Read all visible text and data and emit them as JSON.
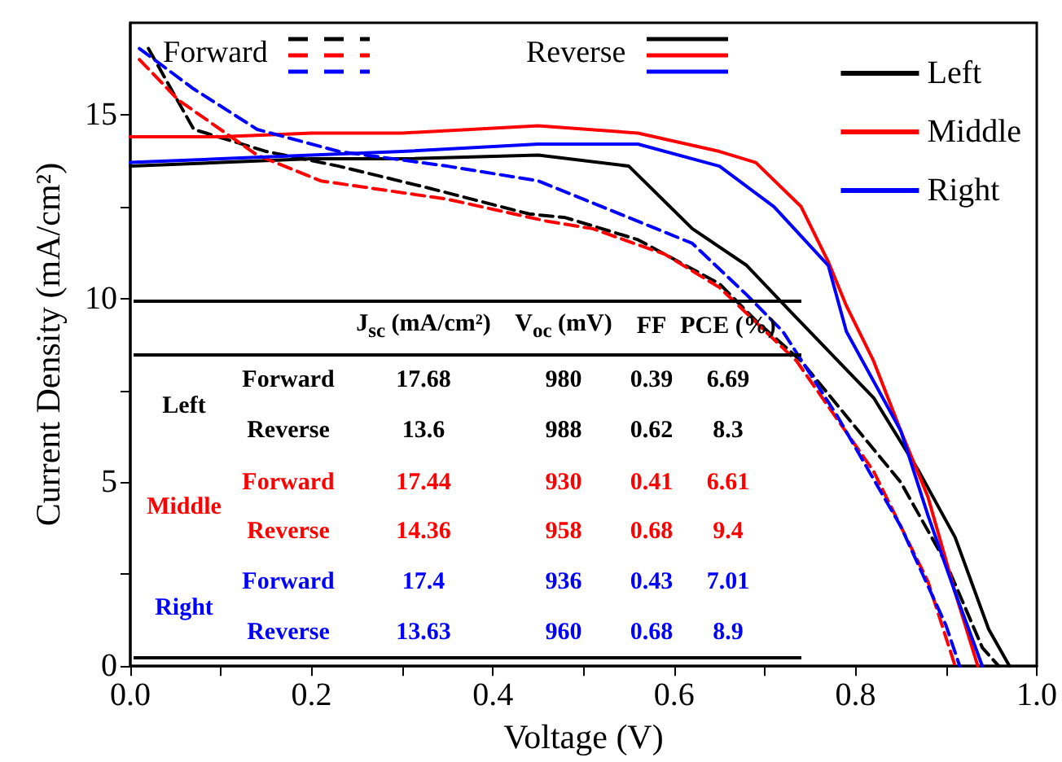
{
  "chart_data": {
    "type": "line",
    "xlabel": "Voltage (V)",
    "ylabel": "Current Density (mA/cm²)",
    "xlim": [
      0,
      1
    ],
    "ylim": [
      0,
      17.5
    ],
    "xticks": [
      {
        "value": 0,
        "label": "0.0"
      },
      {
        "value": 0.1,
        "label": null
      },
      0.2,
      {
        "value": 0.3,
        "label": null
      },
      0.4,
      {
        "value": 0.5,
        "label": null
      },
      0.6,
      {
        "value": 0.7,
        "label": null
      },
      0.8,
      {
        "value": 0.9,
        "label": null
      },
      {
        "value": 1,
        "label": "1.0"
      }
    ],
    "yticks": [
      0,
      {
        "value": 2.5,
        "label": null
      },
      5,
      {
        "value": 7.5,
        "label": null
      },
      10,
      {
        "value": 12.5,
        "label": null
      },
      15
    ],
    "grid": false,
    "legend": "top right",
    "marker": "none",
    "series": [
      {
        "color": "#000000",
        "line_style": "dashed",
        "x": [
          0.02,
          0.07,
          0.15,
          0.23,
          0.33,
          0.44,
          0.48,
          0.56,
          0.65,
          0.69,
          0.74,
          0.79,
          0.85,
          0.9,
          0.94,
          0.958
        ],
        "values": [
          16.8,
          14.6,
          14.0,
          13.6,
          13.0,
          12.3,
          12.2,
          11.6,
          10.4,
          9.4,
          8.3,
          6.8,
          5.0,
          2.8,
          0.5,
          0
        ]
      },
      {
        "name": "Left",
        "color": "#000000",
        "line_style": "solid",
        "x": [
          0,
          0.1,
          0.2,
          0.3,
          0.45,
          0.55,
          0.62,
          0.68,
          0.73,
          0.82,
          0.87,
          0.91,
          0.947,
          0.97
        ],
        "values": [
          13.6,
          13.7,
          13.8,
          13.8,
          13.9,
          13.6,
          11.9,
          10.9,
          9.6,
          7.3,
          5.3,
          3.5,
          1.0,
          0
        ]
      },
      {
        "color": "#ff0000",
        "line_style": "dashed",
        "x": [
          0.01,
          0.053,
          0.14,
          0.21,
          0.35,
          0.46,
          0.51,
          0.59,
          0.65,
          0.735,
          0.82,
          0.88,
          0.91
        ],
        "values": [
          16.5,
          15.4,
          13.9,
          13.2,
          12.7,
          12.1,
          11.9,
          11.2,
          10.3,
          8.3,
          5.3,
          2.3,
          0
        ]
      },
      {
        "name": "Middle",
        "color": "#ff0000",
        "line_style": "solid",
        "x": [
          0,
          0.1,
          0.2,
          0.3,
          0.45,
          0.56,
          0.65,
          0.69,
          0.74,
          0.77,
          0.79,
          0.82,
          0.85,
          0.88,
          0.91,
          0.935
        ],
        "values": [
          14.4,
          14.4,
          14.5,
          14.5,
          14.7,
          14.5,
          14.0,
          13.7,
          12.5,
          11.0,
          9.8,
          8.3,
          6.4,
          4.6,
          2.0,
          0
        ]
      },
      {
        "color": "#0000ff",
        "line_style": "dashed",
        "x": [
          0.01,
          0.07,
          0.14,
          0.23,
          0.35,
          0.45,
          0.55,
          0.62,
          0.68,
          0.72,
          0.78,
          0.85,
          0.9,
          0.915
        ],
        "values": [
          16.8,
          15.7,
          14.6,
          14.0,
          13.6,
          13.2,
          12.2,
          11.5,
          10.1,
          9.1,
          6.8,
          3.8,
          1.1,
          0
        ]
      },
      {
        "name": "Right",
        "color": "#0000ff",
        "line_style": "solid",
        "x": [
          0,
          0.1,
          0.2,
          0.3,
          0.45,
          0.56,
          0.65,
          0.71,
          0.77,
          0.79,
          0.85,
          0.88,
          0.91,
          0.94
        ],
        "values": [
          13.7,
          13.8,
          13.9,
          14.0,
          14.2,
          14.2,
          13.6,
          12.5,
          10.9,
          9.1,
          6.4,
          4.1,
          2.0,
          0
        ]
      }
    ],
    "annotations": [
      "Forward",
      "Reverse",
      "J$_{sc}$ (mA/cm²)",
      "V$_{oc}$ (mV)",
      "FF",
      "PCE (%)",
      "Forward",
      "17.68",
      "980",
      "0.39",
      "6.69",
      "Reverse",
      "13.6",
      "988",
      "0.62",
      "8.3",
      "Forward",
      "17.44",
      "930",
      "0.41",
      "6.61",
      "Reverse",
      "14.36",
      "958",
      "0.68",
      "9.4",
      "Forward",
      "17.4",
      "936",
      "0.43",
      "7.01",
      "Reverse",
      "13.63",
      "960",
      "0.68",
      "8.9"
    ]
  }
}
